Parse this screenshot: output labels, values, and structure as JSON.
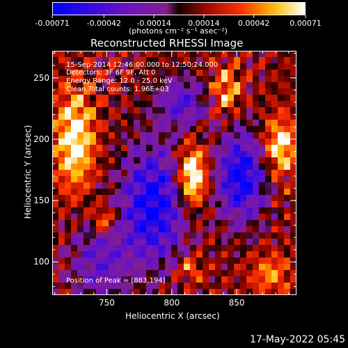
{
  "colorbar": {
    "tick_labels": [
      "-0.00071",
      "-0.00042",
      "-0.00014",
      "0.00014",
      "0.00042",
      "0.00071"
    ],
    "unit_label": "(photons cm⁻² s⁻¹ asec⁻²)",
    "range": [
      -0.00071,
      0.00071
    ]
  },
  "chart_data": {
    "type": "heatmap",
    "title": "Reconstructed RHESSI Image",
    "xlabel": "Heliocentric X (arcsec)",
    "ylabel": "Heliocentric Y (arcsec)",
    "xlim": [
      708,
      896
    ],
    "ylim": [
      73,
      272
    ],
    "x_ticks": [
      750,
      800,
      850
    ],
    "y_ticks": [
      100,
      150,
      200,
      250
    ],
    "annotations": {
      "time": "15-Sep-2014 12:46:00.000 to 12:50:24.000",
      "detectors": "Detectors: 3F 6F 9F, Att 0",
      "energy": "Energy Range: 12.0 - 25.0 keV",
      "clean": "Clean    Total counts: 1.96E+03",
      "peak": "Position of Peak = [883,194]"
    },
    "peak": [
      883,
      194
    ],
    "grid": false,
    "colormap": "blue-purple-red-yellow-white"
  },
  "footer": {
    "timestamp": "17-May-2022 05:45"
  }
}
